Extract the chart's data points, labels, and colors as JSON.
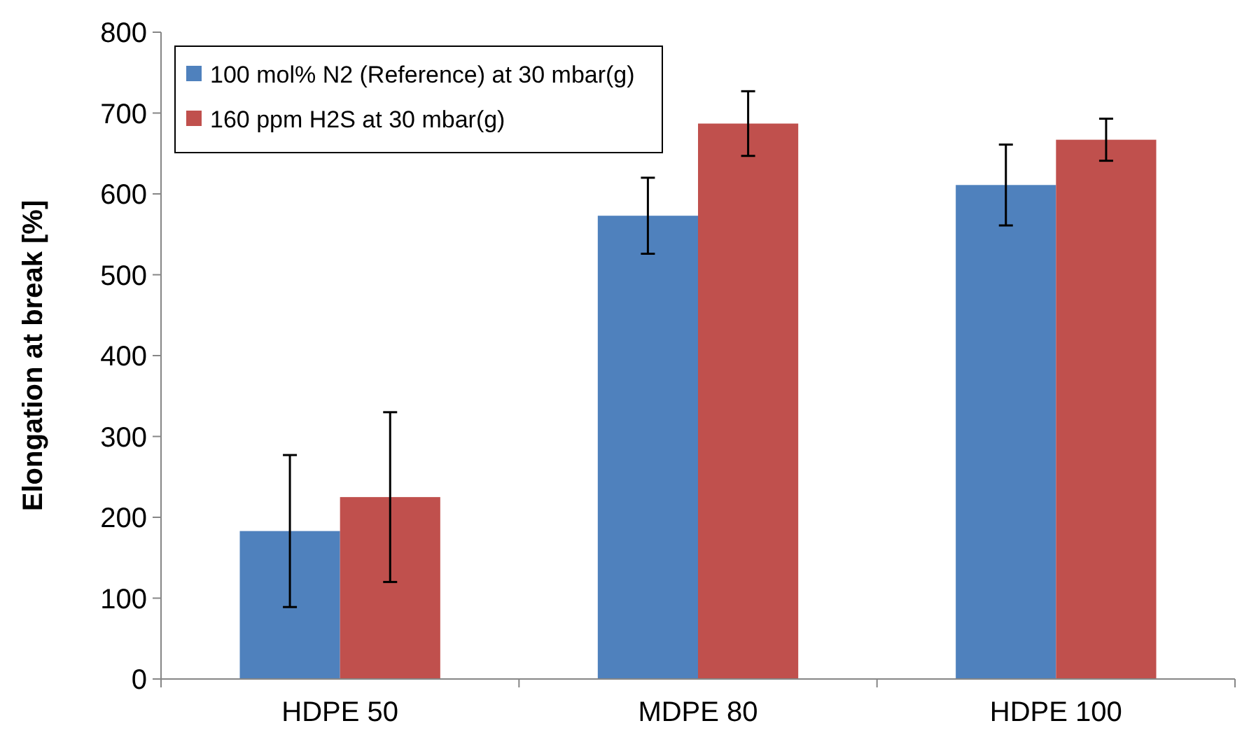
{
  "chart_data": {
    "type": "bar",
    "ylabel": "Elongation at break [%]",
    "categories": [
      "HDPE 50",
      "MDPE 80",
      "HDPE 100"
    ],
    "series": [
      {
        "name": "100 mol% N2 (Reference) at 30 mbar(g)",
        "color": "#4f81bd",
        "values": [
          183,
          573,
          611
        ],
        "errors": [
          94,
          47,
          50
        ]
      },
      {
        "name": "160 ppm H2S at 30 mbar(g)",
        "color": "#c0504d",
        "values": [
          225,
          687,
          667
        ],
        "errors": [
          105,
          40,
          26
        ]
      }
    ],
    "ylim": [
      0,
      800
    ],
    "yticks": [
      0,
      100,
      200,
      300,
      400,
      500,
      600,
      700,
      800
    ],
    "grid": false,
    "legend": "top left"
  }
}
